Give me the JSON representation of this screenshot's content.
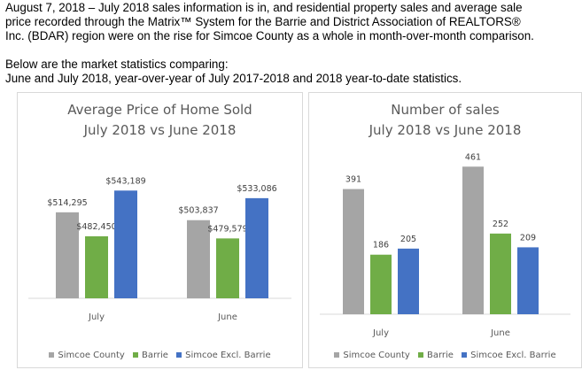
{
  "intro": {
    "line1": "August 7, 2018 – July 2018 sales information is in, and residential property sales and average sale",
    "line2": "price recorded through the Matrix™ System for the Barrie and District Association of REALTORS®",
    "line3": "Inc. (BDAR) region were on the rise for Simcoe County as a whole in month-over-month comparison.",
    "line4": "Below are the market statistics comparing:",
    "line5": "June and July 2018, year-over-year of July 2017-2018 and 2018 year-to-date statistics."
  },
  "colors": {
    "simcoe": "#a5a5a5",
    "barrie": "#70ad47",
    "excl": "#4472c4",
    "axis": "#d9d9d9",
    "text": "#595959"
  },
  "chart_data": [
    {
      "type": "bar",
      "title_line1": "Average Price of Home Sold",
      "title_line2": "July 2018 vs June 2018",
      "categories": [
        "July",
        "June"
      ],
      "series": [
        {
          "name": "Simcoe County",
          "values": [
            514295,
            503837
          ],
          "labels": [
            "$514,295",
            "$503,837"
          ]
        },
        {
          "name": "Barrie",
          "values": [
            482450,
            479579
          ],
          "labels": [
            "$482,450",
            "$479,579"
          ]
        },
        {
          "name": "Simcoe Excl. Barrie",
          "values": [
            543189,
            533086
          ],
          "labels": [
            "$543,189",
            "$533,086"
          ]
        }
      ],
      "axis_min": 400000,
      "axis_max": 560000,
      "legend": "bottom"
    },
    {
      "type": "bar",
      "title_line1": "Number of sales",
      "title_line2": "July 2018 vs June 2018",
      "categories": [
        "July",
        "June"
      ],
      "series": [
        {
          "name": "Simcoe County",
          "values": [
            391,
            461
          ],
          "labels": [
            "391",
            "461"
          ]
        },
        {
          "name": "Barrie",
          "values": [
            186,
            252
          ],
          "labels": [
            "186",
            "252"
          ]
        },
        {
          "name": "Simcoe Excl. Barrie",
          "values": [
            205,
            209
          ],
          "labels": [
            "205",
            "209"
          ]
        }
      ],
      "axis_min": 0,
      "axis_max": 470,
      "legend": "bottom"
    }
  ]
}
